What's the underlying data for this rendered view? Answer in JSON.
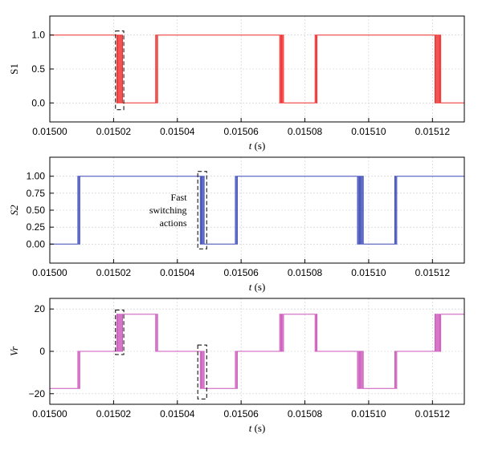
{
  "chart_data": [
    {
      "type": "line",
      "id": "s1",
      "ylabel": "S1",
      "xlabel_italic": "t",
      "xlabel_rest": " (s)",
      "xlim": [
        0.015,
        0.01513
      ],
      "ylim": [
        -0.28,
        1.28
      ],
      "yticks": [
        0.0,
        0.5,
        1.0
      ],
      "ytick_labels": [
        "0.0",
        "0.5",
        "1.0"
      ],
      "xticks": [
        0.015,
        0.01502,
        0.01504,
        0.01506,
        0.01508,
        0.0151,
        0.01512
      ],
      "xtick_labels": [
        "0.01500",
        "0.01502",
        "0.01504",
        "0.01506",
        "0.01508",
        "0.01510",
        "0.01512"
      ],
      "color": "#ee2a2a",
      "segments": [
        [
          0.015,
          1
        ],
        [
          0.015021,
          1
        ],
        [
          0.015021,
          0
        ],
        [
          0.0150213,
          0
        ],
        [
          0.0150213,
          1
        ],
        [
          0.0150216,
          1
        ],
        [
          0.0150216,
          0
        ],
        [
          0.0150219,
          0
        ],
        [
          0.0150219,
          1
        ],
        [
          0.0150222,
          1
        ],
        [
          0.0150222,
          0
        ],
        [
          0.0150225,
          0
        ],
        [
          0.0150225,
          1
        ],
        [
          0.0150228,
          1
        ],
        [
          0.0150228,
          0
        ],
        [
          0.0150332,
          0
        ],
        [
          0.0150332,
          1
        ],
        [
          0.0150335,
          1
        ],
        [
          0.0150335,
          0
        ],
        [
          0.0150338,
          0
        ],
        [
          0.0150338,
          1
        ],
        [
          0.0150721,
          1
        ],
        [
          0.0150721,
          0
        ],
        [
          0.0150724,
          0
        ],
        [
          0.0150724,
          1
        ],
        [
          0.0150727,
          1
        ],
        [
          0.0150727,
          0
        ],
        [
          0.015073,
          0
        ],
        [
          0.015073,
          1
        ],
        [
          0.0150733,
          1
        ],
        [
          0.0150733,
          0
        ],
        [
          0.0150832,
          0
        ],
        [
          0.0150832,
          1
        ],
        [
          0.0150835,
          1
        ],
        [
          0.0150835,
          0
        ],
        [
          0.0150838,
          0
        ],
        [
          0.0150838,
          1
        ],
        [
          0.0151208,
          1
        ],
        [
          0.0151208,
          0
        ],
        [
          0.0151211,
          0
        ],
        [
          0.0151211,
          1
        ],
        [
          0.0151214,
          1
        ],
        [
          0.0151214,
          0
        ],
        [
          0.0151217,
          0
        ],
        [
          0.0151217,
          1
        ],
        [
          0.015122,
          1
        ],
        [
          0.015122,
          0
        ],
        [
          0.0151223,
          0
        ],
        [
          0.0151223,
          1
        ],
        [
          0.0151226,
          1
        ],
        [
          0.0151226,
          0
        ],
        [
          0.01513,
          0
        ]
      ],
      "boxes": [
        {
          "x0": 0.0150206,
          "x1": 0.0150232,
          "y0": -0.1,
          "y1": 1.06
        }
      ]
    },
    {
      "type": "line",
      "id": "s2",
      "ylabel": "S2",
      "xlabel_italic": "t",
      "xlabel_rest": " (s)",
      "xlim": [
        0.015,
        0.01513
      ],
      "ylim": [
        -0.28,
        1.28
      ],
      "yticks": [
        0.0,
        0.25,
        0.5,
        0.75,
        1.0
      ],
      "ytick_labels": [
        "0.00",
        "0.25",
        "0.50",
        "0.75",
        "1.00"
      ],
      "xticks": [
        0.015,
        0.01502,
        0.01504,
        0.01506,
        0.01508,
        0.0151,
        0.01512
      ],
      "xtick_labels": [
        "0.01500",
        "0.01502",
        "0.01504",
        "0.01506",
        "0.01508",
        "0.01510",
        "0.01512"
      ],
      "color": "#3a48b8",
      "segments": [
        [
          0.015,
          0
        ],
        [
          0.0150088,
          0
        ],
        [
          0.0150088,
          1
        ],
        [
          0.0150091,
          1
        ],
        [
          0.0150091,
          0
        ],
        [
          0.0150094,
          0
        ],
        [
          0.0150094,
          1
        ],
        [
          0.0150472,
          1
        ],
        [
          0.0150472,
          0
        ],
        [
          0.0150475,
          0
        ],
        [
          0.0150475,
          1
        ],
        [
          0.0150478,
          1
        ],
        [
          0.0150478,
          0
        ],
        [
          0.0150481,
          0
        ],
        [
          0.0150481,
          1
        ],
        [
          0.0150484,
          1
        ],
        [
          0.0150484,
          0
        ],
        [
          0.0150582,
          0
        ],
        [
          0.0150582,
          1
        ],
        [
          0.0150585,
          1
        ],
        [
          0.0150585,
          0
        ],
        [
          0.0150588,
          0
        ],
        [
          0.0150588,
          1
        ],
        [
          0.0150965,
          1
        ],
        [
          0.0150965,
          0
        ],
        [
          0.0150968,
          0
        ],
        [
          0.0150968,
          1
        ],
        [
          0.0150971,
          1
        ],
        [
          0.0150971,
          0
        ],
        [
          0.0150974,
          0
        ],
        [
          0.0150974,
          1
        ],
        [
          0.0150977,
          1
        ],
        [
          0.0150977,
          0
        ],
        [
          0.015098,
          0
        ],
        [
          0.015098,
          1
        ],
        [
          0.0150983,
          1
        ],
        [
          0.0150983,
          0
        ],
        [
          0.0151082,
          0
        ],
        [
          0.0151082,
          1
        ],
        [
          0.0151085,
          1
        ],
        [
          0.0151085,
          0
        ],
        [
          0.0151088,
          0
        ],
        [
          0.0151088,
          1
        ],
        [
          0.01513,
          1
        ]
      ],
      "annotation_lines": [
        "Fast",
        "switching",
        "actions"
      ],
      "boxes": [
        {
          "x0": 0.0150464,
          "x1": 0.0150492,
          "y0": -0.07,
          "y1": 1.07
        }
      ]
    },
    {
      "type": "line",
      "id": "vr",
      "ylabel": "Vr",
      "xlabel_italic": "t",
      "xlabel_rest": " (s)",
      "xlim": [
        0.015,
        0.01513
      ],
      "ylim": [
        -25,
        25
      ],
      "yticks": [
        -20,
        0,
        20
      ],
      "ytick_labels": [
        "−20",
        "0",
        "20"
      ],
      "xticks": [
        0.015,
        0.01502,
        0.01504,
        0.01506,
        0.01508,
        0.0151,
        0.01512
      ],
      "xtick_labels": [
        "0.01500",
        "0.01502",
        "0.01504",
        "0.01506",
        "0.01508",
        "0.01510",
        "0.01512"
      ],
      "color": "#cc55bb",
      "segments": [
        [
          0.015,
          -17.5
        ],
        [
          0.0150088,
          -17.5
        ],
        [
          0.0150088,
          0
        ],
        [
          0.0150091,
          0
        ],
        [
          0.0150091,
          -17.5
        ],
        [
          0.0150094,
          -17.5
        ],
        [
          0.0150094,
          0
        ],
        [
          0.015021,
          0
        ],
        [
          0.015021,
          17.5
        ],
        [
          0.0150213,
          17.5
        ],
        [
          0.0150213,
          0
        ],
        [
          0.0150216,
          0
        ],
        [
          0.0150216,
          17.5
        ],
        [
          0.0150219,
          17.5
        ],
        [
          0.0150219,
          0
        ],
        [
          0.0150222,
          0
        ],
        [
          0.0150222,
          17.5
        ],
        [
          0.0150225,
          17.5
        ],
        [
          0.0150225,
          0
        ],
        [
          0.0150228,
          0
        ],
        [
          0.0150228,
          17.5
        ],
        [
          0.0150332,
          17.5
        ],
        [
          0.0150332,
          0
        ],
        [
          0.0150335,
          0
        ],
        [
          0.0150335,
          17.5
        ],
        [
          0.0150338,
          17.5
        ],
        [
          0.0150338,
          0
        ],
        [
          0.0150472,
          0
        ],
        [
          0.0150472,
          -17.5
        ],
        [
          0.0150475,
          -17.5
        ],
        [
          0.0150475,
          0
        ],
        [
          0.0150478,
          0
        ],
        [
          0.0150478,
          -17.5
        ],
        [
          0.0150481,
          -17.5
        ],
        [
          0.0150481,
          0
        ],
        [
          0.0150484,
          0
        ],
        [
          0.0150484,
          -17.5
        ],
        [
          0.0150582,
          -17.5
        ],
        [
          0.0150582,
          0
        ],
        [
          0.0150585,
          0
        ],
        [
          0.0150585,
          -17.5
        ],
        [
          0.0150588,
          -17.5
        ],
        [
          0.0150588,
          0
        ],
        [
          0.0150721,
          0
        ],
        [
          0.0150721,
          17.5
        ],
        [
          0.0150724,
          17.5
        ],
        [
          0.0150724,
          0
        ],
        [
          0.0150727,
          0
        ],
        [
          0.0150727,
          17.5
        ],
        [
          0.015073,
          17.5
        ],
        [
          0.015073,
          0
        ],
        [
          0.0150733,
          0
        ],
        [
          0.0150733,
          17.5
        ],
        [
          0.0150832,
          17.5
        ],
        [
          0.0150832,
          0
        ],
        [
          0.0150835,
          0
        ],
        [
          0.0150835,
          17.5
        ],
        [
          0.0150838,
          17.5
        ],
        [
          0.0150838,
          0
        ],
        [
          0.0150965,
          0
        ],
        [
          0.0150965,
          -17.5
        ],
        [
          0.0150968,
          -17.5
        ],
        [
          0.0150968,
          0
        ],
        [
          0.0150971,
          0
        ],
        [
          0.0150971,
          -17.5
        ],
        [
          0.0150974,
          -17.5
        ],
        [
          0.0150974,
          0
        ],
        [
          0.0150977,
          0
        ],
        [
          0.0150977,
          -17.5
        ],
        [
          0.015098,
          -17.5
        ],
        [
          0.015098,
          0
        ],
        [
          0.0150983,
          0
        ],
        [
          0.0150983,
          -17.5
        ],
        [
          0.0151082,
          -17.5
        ],
        [
          0.0151082,
          0
        ],
        [
          0.0151085,
          0
        ],
        [
          0.0151085,
          -17.5
        ],
        [
          0.0151088,
          -17.5
        ],
        [
          0.0151088,
          0
        ],
        [
          0.0151208,
          0
        ],
        [
          0.0151208,
          17.5
        ],
        [
          0.0151211,
          17.5
        ],
        [
          0.0151211,
          0
        ],
        [
          0.0151214,
          0
        ],
        [
          0.0151214,
          17.5
        ],
        [
          0.0151217,
          17.5
        ],
        [
          0.0151217,
          0
        ],
        [
          0.015122,
          0
        ],
        [
          0.015122,
          17.5
        ],
        [
          0.0151223,
          17.5
        ],
        [
          0.0151223,
          0
        ],
        [
          0.0151226,
          0
        ],
        [
          0.0151226,
          17.5
        ],
        [
          0.01513,
          17.5
        ]
      ],
      "boxes": [
        {
          "x0": 0.0150206,
          "x1": 0.0150232,
          "y0": -1.5,
          "y1": 19.5
        },
        {
          "x0": 0.0150464,
          "x1": 0.0150492,
          "y0": -22.5,
          "y1": 3
        }
      ]
    }
  ]
}
